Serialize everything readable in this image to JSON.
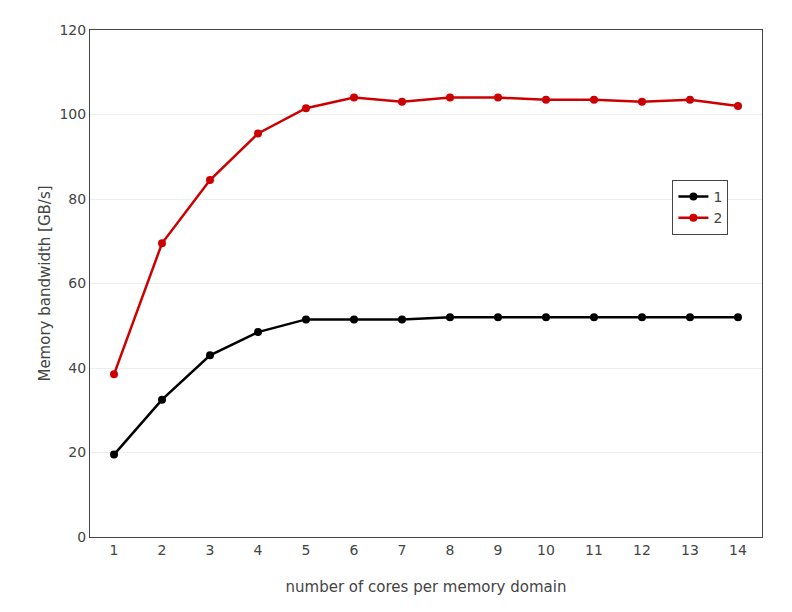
{
  "chart_data": {
    "type": "line",
    "xlabel": "number of cores per memory domain",
    "ylabel": "Memory bandwidth [GB/s]",
    "x": [
      1,
      2,
      3,
      4,
      5,
      6,
      7,
      8,
      9,
      10,
      11,
      12,
      13,
      14
    ],
    "series": [
      {
        "name": "1",
        "color": "#000000",
        "values": [
          19.5,
          32.5,
          43.0,
          48.5,
          51.5,
          51.5,
          51.5,
          52.0,
          52.0,
          52.0,
          52.0,
          52.0,
          52.0,
          52.0
        ]
      },
      {
        "name": "2",
        "color": "#cc0000",
        "values": [
          38.5,
          69.5,
          84.5,
          95.5,
          101.5,
          104.0,
          103.0,
          104.0,
          104.0,
          103.5,
          103.5,
          103.0,
          103.5,
          102.0
        ]
      }
    ],
    "marker": "circle",
    "xlim": [
      0.5,
      14.5
    ],
    "ylim": [
      0,
      120
    ],
    "xticks": [
      1,
      2,
      3,
      4,
      5,
      6,
      7,
      8,
      9,
      10,
      11,
      12,
      13,
      14
    ],
    "yticks": [
      0,
      20,
      40,
      60,
      80,
      100,
      120
    ],
    "grid": "y",
    "legend": "right"
  }
}
